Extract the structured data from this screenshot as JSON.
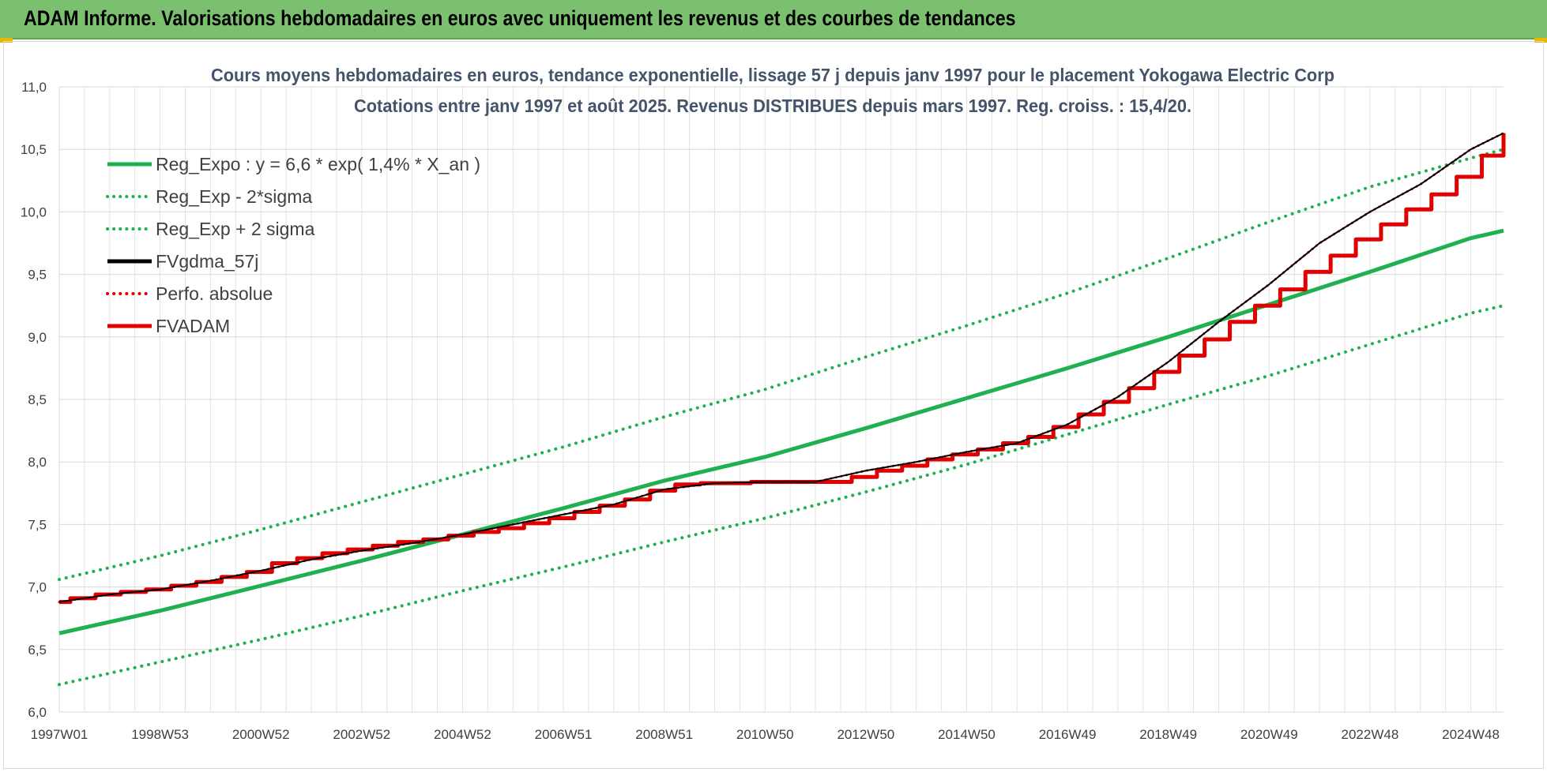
{
  "banner": {
    "title": "ADAM Informe. Valorisations hebdomadaires en euros avec uniquement les revenus et des courbes de tendances",
    "background": "#7ac06e"
  },
  "chart_data": {
    "type": "line",
    "title_lines": [
      "Cours moyens hebdomadaires en euros, tendance exponentielle, lissage 57 j depuis janv 1997 pour le placement Yokogawa Electric Corp",
      "Cotations entre janv 1997 et août 2025.  Revenus DISTRIBUES depuis mars 1997. Reg. croiss. : 15,4/20."
    ],
    "xlabel": "",
    "ylabel": "",
    "ylim": [
      6.0,
      11.0
    ],
    "xlim": [
      1997.0,
      2025.65
    ],
    "grid": true,
    "legend_position": "top-left",
    "y_ticks": [
      "6,0",
      "6,5",
      "7,0",
      "7,5",
      "8,0",
      "8,5",
      "9,0",
      "9,5",
      "10,0",
      "10,5",
      "11,0"
    ],
    "x_ticks": [
      {
        "label": "1997W01",
        "x": 1997.0
      },
      {
        "label": "1998W53",
        "x": 1999.0
      },
      {
        "label": "2000W52",
        "x": 2001.0
      },
      {
        "label": "2002W52",
        "x": 2003.0
      },
      {
        "label": "2004W52",
        "x": 2005.0
      },
      {
        "label": "2006W51",
        "x": 2007.0
      },
      {
        "label": "2008W51",
        "x": 2009.0
      },
      {
        "label": "2010W50",
        "x": 2011.0
      },
      {
        "label": "2012W50",
        "x": 2013.0
      },
      {
        "label": "2014W50",
        "x": 2015.0
      },
      {
        "label": "2016W49",
        "x": 2017.0
      },
      {
        "label": "2018W49",
        "x": 2019.0
      },
      {
        "label": "2020W49",
        "x": 2021.0
      },
      {
        "label": "2022W48",
        "x": 2023.0
      },
      {
        "label": "2024W48",
        "x": 2025.0
      }
    ],
    "series": [
      {
        "name": "Reg_Expo : y = 6,6 * exp( 1,4% *  X_an )",
        "color": "#1fb050",
        "style": "solid",
        "width": 5,
        "x": [
          1997.0,
          1999.0,
          2001.0,
          2003.0,
          2005.0,
          2007.0,
          2009.0,
          2011.0,
          2013.0,
          2015.0,
          2017.0,
          2019.0,
          2021.0,
          2023.0,
          2025.0,
          2025.65
        ],
        "y": [
          6.63,
          6.81,
          7.01,
          7.21,
          7.42,
          7.63,
          7.85,
          8.04,
          8.27,
          8.51,
          8.75,
          9.0,
          9.26,
          9.52,
          9.79,
          9.85
        ]
      },
      {
        "name": "Reg_Exp - 2*sigma",
        "color": "#1fb050",
        "style": "dotted",
        "width": 4,
        "x": [
          1997.0,
          1999.0,
          2001.0,
          2003.0,
          2005.0,
          2007.0,
          2009.0,
          2011.0,
          2013.0,
          2015.0,
          2017.0,
          2019.0,
          2021.0,
          2023.0,
          2025.0,
          2025.65
        ],
        "y": [
          6.22,
          6.4,
          6.58,
          6.77,
          6.97,
          7.16,
          7.36,
          7.55,
          7.76,
          7.98,
          8.22,
          8.46,
          8.69,
          8.94,
          9.19,
          9.25
        ]
      },
      {
        "name": "Reg_Exp + 2 sigma",
        "color": "#1fb050",
        "style": "dotted",
        "width": 4,
        "x": [
          1997.0,
          1999.0,
          2001.0,
          2003.0,
          2005.0,
          2007.0,
          2009.0,
          2011.0,
          2013.0,
          2015.0,
          2017.0,
          2019.0,
          2021.0,
          2023.0,
          2025.0,
          2025.65
        ],
        "y": [
          7.06,
          7.25,
          7.46,
          7.68,
          7.9,
          8.12,
          8.36,
          8.58,
          8.84,
          9.09,
          9.35,
          9.63,
          9.92,
          10.2,
          10.43,
          10.5
        ]
      },
      {
        "name": "FVgdma_57j",
        "color": "#000000",
        "style": "solid",
        "width": 2,
        "x": [
          1997.0,
          1998.0,
          1999.0,
          2000.0,
          2001.0,
          2002.0,
          2003.0,
          2004.0,
          2005.0,
          2006.0,
          2007.0,
          2008.0,
          2009.0,
          2010.0,
          2011.0,
          2012.0,
          2013.0,
          2014.0,
          2015.0,
          2016.0,
          2017.0,
          2018.0,
          2019.0,
          2020.0,
          2021.0,
          2022.0,
          2023.0,
          2024.0,
          2025.0,
          2025.65
        ],
        "y": [
          6.88,
          6.94,
          6.98,
          7.05,
          7.13,
          7.22,
          7.29,
          7.35,
          7.42,
          7.5,
          7.58,
          7.66,
          7.78,
          7.83,
          7.84,
          7.84,
          7.93,
          8.0,
          8.08,
          8.15,
          8.3,
          8.52,
          8.8,
          9.12,
          9.42,
          9.75,
          10.0,
          10.22,
          10.5,
          10.63
        ]
      },
      {
        "name": "Perfo. absolue",
        "color": "#e00000",
        "style": "dotted",
        "width": 3,
        "x": [
          1997.0,
          1998.0,
          1999.0,
          2000.0,
          2001.0,
          2002.0,
          2003.0,
          2004.0,
          2005.0,
          2006.0,
          2007.0,
          2008.0,
          2009.0,
          2010.0,
          2011.0,
          2012.0,
          2013.0,
          2014.0,
          2015.0,
          2016.0,
          2017.0,
          2018.0,
          2019.0,
          2020.0,
          2021.0,
          2022.0,
          2023.0,
          2024.0,
          2025.0,
          2025.65
        ],
        "y": [
          6.88,
          6.94,
          6.98,
          7.05,
          7.13,
          7.22,
          7.29,
          7.35,
          7.42,
          7.5,
          7.58,
          7.66,
          7.78,
          7.83,
          7.84,
          7.84,
          7.93,
          8.0,
          8.08,
          8.15,
          8.3,
          8.52,
          8.8,
          9.12,
          9.42,
          9.75,
          10.0,
          10.22,
          10.5,
          10.63
        ]
      },
      {
        "name": "FVADAM",
        "color": "#e00000",
        "style": "step",
        "width": 5,
        "x": [
          1997.0,
          1997.22,
          1997.72,
          1998.22,
          1998.72,
          1999.22,
          1999.72,
          2000.22,
          2000.72,
          2001.22,
          2001.72,
          2002.22,
          2002.72,
          2003.22,
          2003.72,
          2004.22,
          2004.72,
          2005.22,
          2005.72,
          2006.22,
          2006.72,
          2007.22,
          2007.72,
          2008.22,
          2008.72,
          2009.22,
          2009.72,
          2010.22,
          2010.72,
          2011.22,
          2011.72,
          2012.22,
          2012.72,
          2013.22,
          2013.72,
          2014.22,
          2014.72,
          2015.22,
          2015.72,
          2016.22,
          2016.72,
          2017.22,
          2017.72,
          2018.22,
          2018.72,
          2019.22,
          2019.72,
          2020.22,
          2020.72,
          2021.22,
          2021.72,
          2022.22,
          2022.72,
          2023.22,
          2023.72,
          2024.22,
          2024.72,
          2025.22,
          2025.65
        ],
        "y": [
          6.88,
          6.91,
          6.94,
          6.96,
          6.98,
          7.01,
          7.04,
          7.08,
          7.12,
          7.19,
          7.23,
          7.27,
          7.3,
          7.33,
          7.36,
          7.38,
          7.41,
          7.44,
          7.47,
          7.51,
          7.55,
          7.6,
          7.65,
          7.7,
          7.77,
          7.82,
          7.83,
          7.83,
          7.84,
          7.84,
          7.84,
          7.84,
          7.88,
          7.93,
          7.97,
          8.02,
          8.06,
          8.1,
          8.15,
          8.2,
          8.28,
          8.38,
          8.48,
          8.59,
          8.72,
          8.85,
          8.98,
          9.12,
          9.25,
          9.38,
          9.52,
          9.65,
          9.78,
          9.9,
          10.02,
          10.14,
          10.28,
          10.45,
          10.63
        ]
      }
    ]
  }
}
